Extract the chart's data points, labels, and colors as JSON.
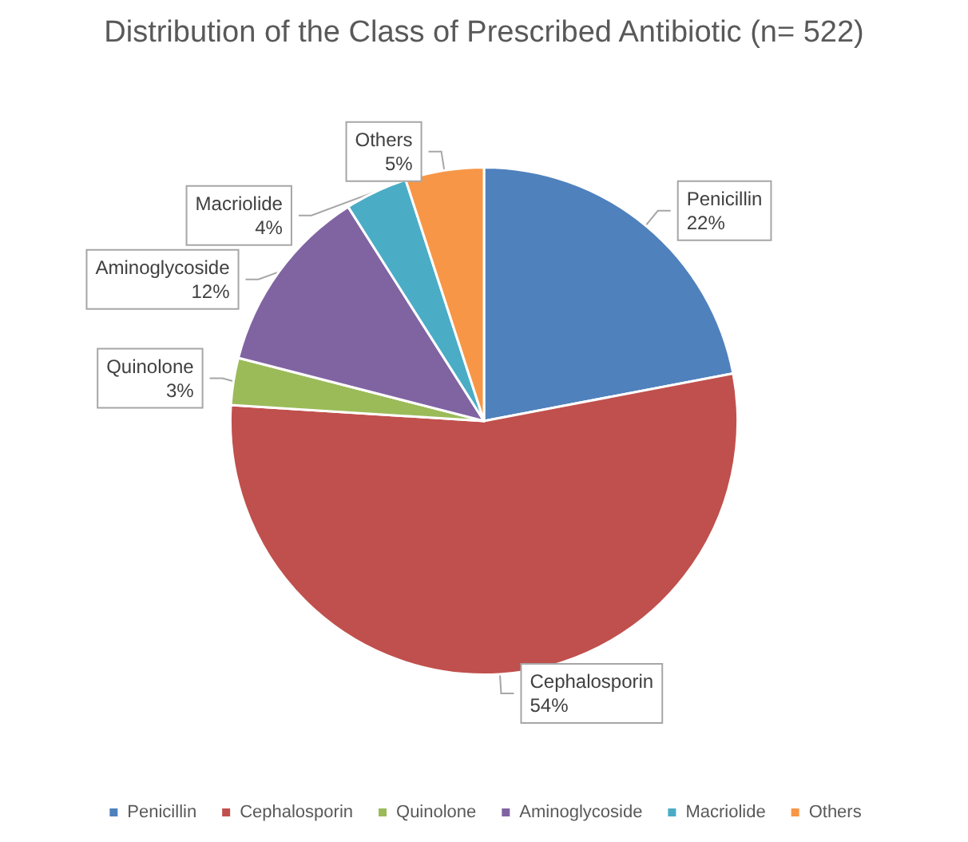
{
  "chart_data": {
    "type": "pie",
    "title": "Distribution of the Class of Prescribed Antibiotic (n= 522)",
    "categories": [
      "Penicillin",
      "Cephalosporin",
      "Quinolone",
      "Aminoglycoside",
      "Macriolide",
      "Others"
    ],
    "values": [
      22,
      54,
      3,
      12,
      4,
      5
    ],
    "value_labels": [
      "22%",
      "54%",
      "3%",
      "12%",
      "4%",
      "5%"
    ],
    "colors": [
      "#4f81bd",
      "#c0504d",
      "#9bbb59",
      "#8064a2",
      "#4bacc6",
      "#f79646"
    ],
    "legend": "bottom"
  }
}
